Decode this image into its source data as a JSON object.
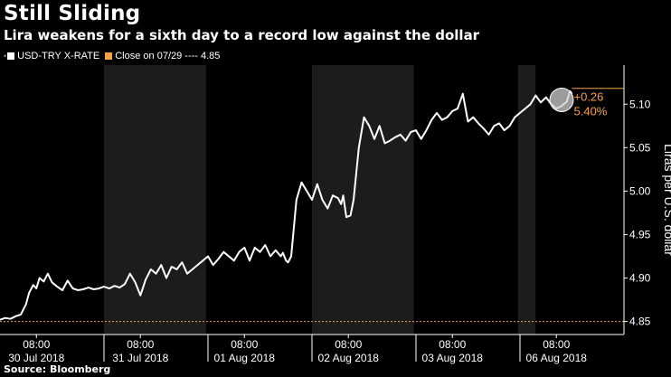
{
  "header": {
    "title": "Still Sliding",
    "subtitle": "Lira weakens for a sixth day to a record low against the dollar"
  },
  "legend": {
    "series_label": "USD-TRY X-RATE",
    "close_label": "Close on 07/29 ---- 4.85"
  },
  "footer": {
    "source": "Source: Bloomberg"
  },
  "colors": {
    "background": "#000000",
    "shade": "#1c1c1c",
    "series": "#ffffff",
    "accent": "#f5a04a",
    "axis": "#ffffff"
  },
  "chart_data": {
    "type": "line",
    "title": "Still Sliding",
    "subtitle": "Lira weakens for a sixth day to a record low against the dollar",
    "ylabel": "Liras per U.S. dollar",
    "ylim": [
      4.835,
      5.145
    ],
    "yticks": [
      4.85,
      4.9,
      4.95,
      5.0,
      5.05,
      5.1
    ],
    "ytick_labels": [
      "4.85",
      "4.90",
      "4.95",
      "5.00",
      "5.05",
      "5.10"
    ],
    "xlim": [
      0,
      6
    ],
    "day_labels": [
      {
        "time": "08:00",
        "date": "30 Jul 2018",
        "pos": 0.35
      },
      {
        "time": "08:00",
        "date": "31 Jul 2018",
        "pos": 1.35
      },
      {
        "time": "08:00",
        "date": "01 Aug 2018",
        "pos": 2.35
      },
      {
        "time": "08:00",
        "date": "02 Aug 2018",
        "pos": 3.35
      },
      {
        "time": "08:00",
        "date": "03 Aug 2018",
        "pos": 4.35
      },
      {
        "time": "08:00",
        "date": "06 Aug 2018",
        "pos": 5.35
      }
    ],
    "day_separators": [
      1,
      2,
      3,
      4,
      5
    ],
    "shaded_ranges": [
      [
        1.0,
        1.98
      ],
      [
        3.0,
        3.98
      ],
      [
        4.98,
        5.15
      ]
    ],
    "grid": false,
    "reference_line": {
      "label": "Close on 07/29",
      "value": 4.85
    },
    "annotation": {
      "change": "+0.26",
      "percent": "5.40%",
      "last_value": 5.112
    },
    "series": [
      {
        "name": "USD-TRY X-RATE",
        "x": [
          0.0,
          0.05,
          0.1,
          0.15,
          0.2,
          0.25,
          0.28,
          0.32,
          0.35,
          0.38,
          0.42,
          0.46,
          0.5,
          0.55,
          0.6,
          0.65,
          0.7,
          0.75,
          0.8,
          0.85,
          0.9,
          0.95,
          1.0,
          1.05,
          1.1,
          1.15,
          1.2,
          1.25,
          1.3,
          1.35,
          1.4,
          1.45,
          1.5,
          1.55,
          1.6,
          1.65,
          1.7,
          1.75,
          1.8,
          1.85,
          1.9,
          1.95,
          2.0,
          2.05,
          2.1,
          2.15,
          2.2,
          2.25,
          2.3,
          2.35,
          2.4,
          2.45,
          2.5,
          2.55,
          2.6,
          2.65,
          2.7,
          2.72,
          2.75,
          2.77,
          2.8,
          2.85,
          2.9,
          2.95,
          3.0,
          3.05,
          3.1,
          3.15,
          3.2,
          3.25,
          3.28,
          3.3,
          3.33,
          3.37,
          3.4,
          3.45,
          3.5,
          3.55,
          3.6,
          3.65,
          3.7,
          3.75,
          3.8,
          3.85,
          3.9,
          3.95,
          4.0,
          4.05,
          4.1,
          4.15,
          4.2,
          4.25,
          4.3,
          4.35,
          4.4,
          4.45,
          4.5,
          4.55,
          4.6,
          4.65,
          4.7,
          4.75,
          4.8,
          4.85,
          4.9,
          4.95,
          5.0,
          5.05,
          5.1,
          5.15,
          5.2,
          5.25,
          5.3,
          5.35,
          5.4,
          5.45,
          5.48,
          5.5
        ],
        "y": [
          4.852,
          4.854,
          4.853,
          4.856,
          4.858,
          4.87,
          4.883,
          4.892,
          4.888,
          4.9,
          4.896,
          4.905,
          4.895,
          4.89,
          4.886,
          4.897,
          4.888,
          4.886,
          4.887,
          4.889,
          4.887,
          4.888,
          4.89,
          4.888,
          4.891,
          4.889,
          4.893,
          4.905,
          4.895,
          4.88,
          4.898,
          4.91,
          4.905,
          4.915,
          4.9,
          4.913,
          4.91,
          4.918,
          4.905,
          4.91,
          4.915,
          4.92,
          4.925,
          4.915,
          4.922,
          4.93,
          4.925,
          4.92,
          4.93,
          4.935,
          4.92,
          4.935,
          4.93,
          4.938,
          4.925,
          4.932,
          4.925,
          4.929,
          4.92,
          4.918,
          4.925,
          4.99,
          5.01,
          5.0,
          4.99,
          5.008,
          4.99,
          4.98,
          4.995,
          4.992,
          4.985,
          4.995,
          4.97,
          4.972,
          4.99,
          5.05,
          5.085,
          5.075,
          5.06,
          5.075,
          5.055,
          5.058,
          5.062,
          5.065,
          5.058,
          5.068,
          5.07,
          5.06,
          5.07,
          5.082,
          5.09,
          5.082,
          5.085,
          5.092,
          5.095,
          5.112,
          5.08,
          5.085,
          5.078,
          5.072,
          5.065,
          5.075,
          5.078,
          5.07,
          5.075,
          5.085,
          5.09,
          5.095,
          5.1,
          5.11,
          5.102,
          5.108,
          5.1,
          5.095,
          5.098,
          5.103,
          5.115,
          5.112
        ]
      }
    ]
  }
}
